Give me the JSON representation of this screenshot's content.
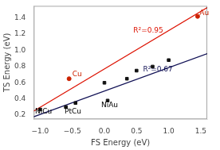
{
  "chart_data": {
    "type": "scatter",
    "xlabel": "FS Energy (eV)",
    "ylabel": "TS Energy (eV)",
    "xlim": [
      -1.1,
      1.6
    ],
    "ylim": [
      0.15,
      1.55
    ],
    "xticks": [
      {
        "value": -1.0,
        "label": "−1.0"
      },
      {
        "value": -0.5,
        "label": "−0.5"
      },
      {
        "value": 0.0,
        "label": "0.0"
      },
      0.5,
      {
        "value": 1.0,
        "label": "1.0"
      },
      1.5
    ],
    "yticks": [
      0.2,
      0.4,
      0.6,
      0.8,
      {
        "value": 1.0,
        "label": "1.0"
      },
      1.2,
      1.4
    ],
    "grid": false,
    "series": [
      {
        "type": "line",
        "color": "#dd1100",
        "x": [
          -1.1,
          1.6
        ],
        "values": [
          0.25,
          1.53
        ]
      },
      {
        "type": "line",
        "color": "#111155",
        "x": [
          -1.1,
          1.6
        ],
        "values": [
          0.18,
          0.96
        ]
      },
      {
        "type": "scatter",
        "marker": "square",
        "color": "#111111",
        "x": [
          -1.0,
          -0.6,
          -0.45,
          0.05,
          0.0,
          0.35,
          0.5,
          0.75,
          1.0
        ],
        "values": [
          0.27,
          0.3,
          0.35,
          0.38,
          0.6,
          0.65,
          0.75,
          0.8,
          0.88
        ]
      },
      {
        "type": "scatter",
        "marker": "circle",
        "color": "#cc2200",
        "x": [
          -0.55,
          1.45
        ],
        "values": [
          0.65,
          1.42
        ]
      }
    ],
    "annotations": [
      {
        "text": "R²=0.95",
        "x": 0.45,
        "y": 1.22,
        "color": "#dd1100"
      },
      {
        "text": "R²=0.67",
        "x": 0.6,
        "y": 0.74,
        "color": "#111155"
      },
      {
        "text": "NiCu",
        "x": -1.08,
        "y": 0.22,
        "color": "#000000"
      },
      {
        "text": "PtCu",
        "x": -0.62,
        "y": 0.22,
        "color": "#000000"
      },
      {
        "text": "NiAu",
        "x": -0.05,
        "y": 0.3,
        "color": "#000000"
      },
      {
        "text": "Cu",
        "x": -0.5,
        "y": 0.68,
        "color": "#cc2200"
      },
      {
        "text": "Au",
        "x": 1.48,
        "y": 1.44,
        "color": "#cc2200"
      }
    ]
  }
}
